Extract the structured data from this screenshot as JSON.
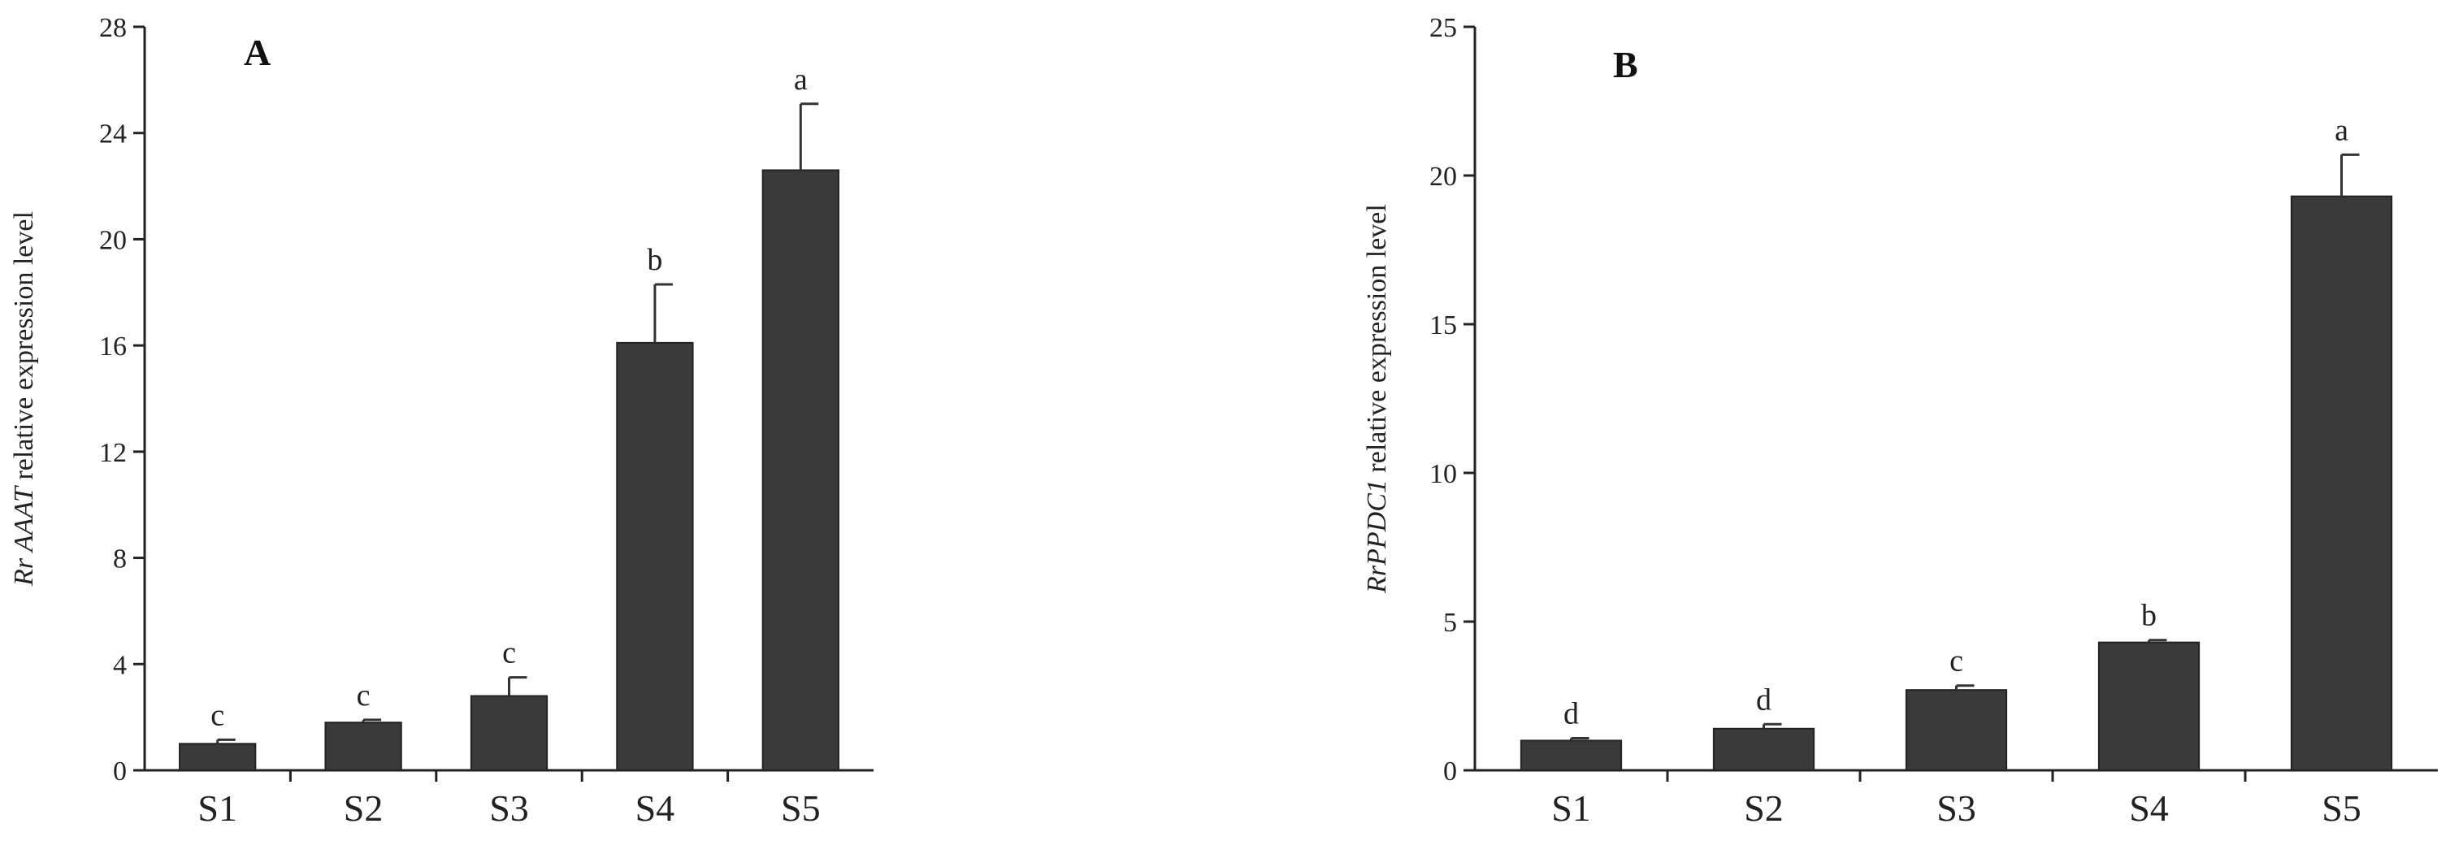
{
  "chart_data": [
    {
      "type": "bar",
      "panel": "A",
      "categories": [
        "S1",
        "S2",
        "S3",
        "S4",
        "S5"
      ],
      "values": [
        1.0,
        1.8,
        2.8,
        16.1,
        22.6
      ],
      "errors": [
        0.15,
        0.1,
        0.7,
        2.2,
        2.5
      ],
      "significance": [
        "c",
        "c",
        "c",
        "b",
        "a"
      ],
      "ylabel_italic": "Rr AAAT",
      "ylabel_rest": " relative expression level",
      "ylim": [
        0,
        28
      ],
      "yticks": [
        0,
        4,
        8,
        12,
        16,
        20,
        24,
        28
      ],
      "bar_color": "#3a3a3a"
    },
    {
      "type": "bar",
      "panel": "B",
      "categories": [
        "S1",
        "S2",
        "S3",
        "S4",
        "S5"
      ],
      "values": [
        1.0,
        1.4,
        2.7,
        4.3,
        19.3
      ],
      "errors": [
        0.08,
        0.15,
        0.15,
        0.08,
        1.4
      ],
      "significance": [
        "d",
        "d",
        "c",
        "b",
        "a"
      ],
      "ylabel_italic": "RrPPDC1",
      "ylabel_rest": " relative expression level",
      "ylim": [
        0,
        25
      ],
      "yticks": [
        0,
        5,
        10,
        15,
        20,
        25
      ],
      "bar_color": "#3a3a3a"
    }
  ]
}
